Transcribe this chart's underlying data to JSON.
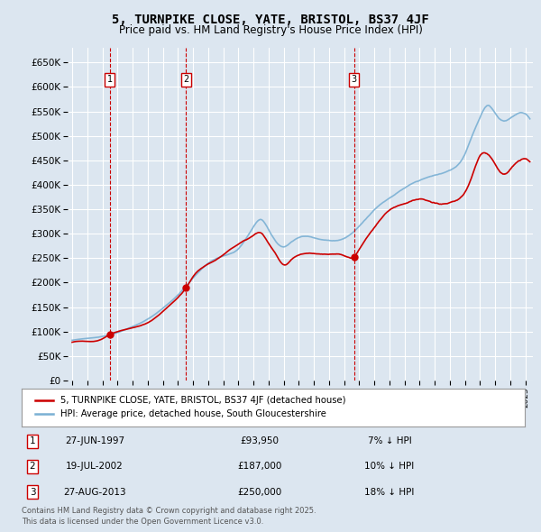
{
  "title": "5, TURNPIKE CLOSE, YATE, BRISTOL, BS37 4JF",
  "subtitle": "Price paid vs. HM Land Registry's House Price Index (HPI)",
  "background_color": "#dce6f0",
  "plot_bg_color": "#dce6f0",
  "grid_color": "#c8d8e8",
  "ylim": [
    0,
    680000
  ],
  "yticks": [
    0,
    50000,
    100000,
    150000,
    200000,
    250000,
    300000,
    350000,
    400000,
    450000,
    500000,
    550000,
    600000,
    650000
  ],
  "legend_label_red": "5, TURNPIKE CLOSE, YATE, BRISTOL, BS37 4JF (detached house)",
  "legend_label_blue": "HPI: Average price, detached house, South Gloucestershire",
  "transactions": [
    {
      "num": 1,
      "date": "27-JUN-1997",
      "price": 93950,
      "pct": "7%",
      "year": 1997.49
    },
    {
      "num": 2,
      "date": "19-JUL-2002",
      "price": 187000,
      "pct": "10%",
      "year": 2002.54
    },
    {
      "num": 3,
      "date": "27-AUG-2013",
      "price": 250000,
      "pct": "18%",
      "year": 2013.66
    }
  ],
  "footnote": "Contains HM Land Registry data © Crown copyright and database right 2025.\nThis data is licensed under the Open Government Licence v3.0.",
  "red_color": "#cc0000",
  "blue_color": "#7ab0d4",
  "marker_color": "#cc0000",
  "vline_color": "#cc0000",
  "box_color": "#cc0000",
  "hpi_keypoints": [
    [
      1995.0,
      82000
    ],
    [
      1996.0,
      86000
    ],
    [
      1997.0,
      90000
    ],
    [
      1998.0,
      98000
    ],
    [
      1999.0,
      110000
    ],
    [
      2000.0,
      125000
    ],
    [
      2001.0,
      148000
    ],
    [
      2002.0,
      175000
    ],
    [
      2003.0,
      210000
    ],
    [
      2004.0,
      240000
    ],
    [
      2005.0,
      255000
    ],
    [
      2006.0,
      270000
    ],
    [
      2007.0,
      315000
    ],
    [
      2007.5,
      330000
    ],
    [
      2008.0,
      310000
    ],
    [
      2008.5,
      285000
    ],
    [
      2009.0,
      275000
    ],
    [
      2009.5,
      285000
    ],
    [
      2010.0,
      295000
    ],
    [
      2011.0,
      295000
    ],
    [
      2012.0,
      290000
    ],
    [
      2013.0,
      295000
    ],
    [
      2014.0,
      320000
    ],
    [
      2015.0,
      355000
    ],
    [
      2016.0,
      380000
    ],
    [
      2017.0,
      400000
    ],
    [
      2018.0,
      415000
    ],
    [
      2019.0,
      425000
    ],
    [
      2020.0,
      435000
    ],
    [
      2021.0,
      470000
    ],
    [
      2021.5,
      510000
    ],
    [
      2022.0,
      545000
    ],
    [
      2022.5,
      570000
    ],
    [
      2023.0,
      555000
    ],
    [
      2023.5,
      540000
    ],
    [
      2024.0,
      545000
    ],
    [
      2024.5,
      555000
    ],
    [
      2025.0,
      555000
    ]
  ],
  "price_keypoints": [
    [
      1995.0,
      78000
    ],
    [
      1996.0,
      80000
    ],
    [
      1997.0,
      85000
    ],
    [
      1997.49,
      93950
    ],
    [
      1998.0,
      100000
    ],
    [
      1999.0,
      108000
    ],
    [
      2000.0,
      118000
    ],
    [
      2001.0,
      140000
    ],
    [
      2002.0,
      168000
    ],
    [
      2002.54,
      187000
    ],
    [
      2003.0,
      210000
    ],
    [
      2004.0,
      235000
    ],
    [
      2005.0,
      255000
    ],
    [
      2006.0,
      278000
    ],
    [
      2007.0,
      295000
    ],
    [
      2007.5,
      300000
    ],
    [
      2008.0,
      278000
    ],
    [
      2008.5,
      255000
    ],
    [
      2009.0,
      235000
    ],
    [
      2009.5,
      245000
    ],
    [
      2010.0,
      255000
    ],
    [
      2011.0,
      258000
    ],
    [
      2012.0,
      255000
    ],
    [
      2013.0,
      252000
    ],
    [
      2013.66,
      250000
    ],
    [
      2014.0,
      265000
    ],
    [
      2015.0,
      310000
    ],
    [
      2016.0,
      345000
    ],
    [
      2017.0,
      360000
    ],
    [
      2018.0,
      370000
    ],
    [
      2019.0,
      360000
    ],
    [
      2020.0,
      360000
    ],
    [
      2021.0,
      380000
    ],
    [
      2021.5,
      415000
    ],
    [
      2022.0,
      455000
    ],
    [
      2022.5,
      460000
    ],
    [
      2023.0,
      440000
    ],
    [
      2023.5,
      420000
    ],
    [
      2024.0,
      430000
    ],
    [
      2024.5,
      445000
    ],
    [
      2025.0,
      450000
    ]
  ]
}
